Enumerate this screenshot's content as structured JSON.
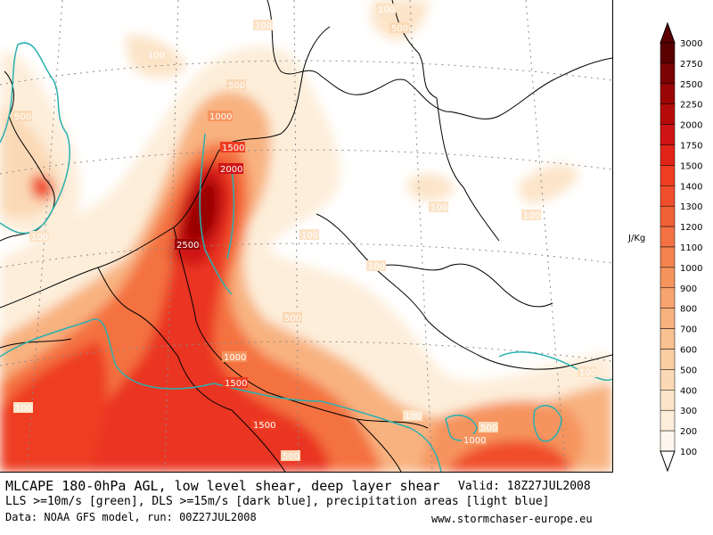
{
  "map": {
    "contour_labels": [
      "100",
      "500",
      "1000",
      "1500",
      "2000",
      "2500"
    ],
    "field": "MLCAPE",
    "colors": {
      "background": "#ffffff",
      "coast": "#000000",
      "lls_contour": "#2ab0b0",
      "grid": "#8a8a8a"
    }
  },
  "legend": {
    "unit": "J/Kg",
    "levels": [
      "3000",
      "2750",
      "2500",
      "2250",
      "2000",
      "1750",
      "1500",
      "1400",
      "1300",
      "1200",
      "1100",
      "1000",
      "900",
      "800",
      "700",
      "600",
      "500",
      "400",
      "300",
      "200",
      "100"
    ],
    "colors": [
      "#5a0000",
      "#7a0303",
      "#9a0606",
      "#b50b0b",
      "#cf1414",
      "#e22418",
      "#ee3d22",
      "#f04e2c",
      "#f26036",
      "#f47242",
      "#f5834f",
      "#f6945e",
      "#f7a46f",
      "#f8b280",
      "#f9c091",
      "#facda3",
      "#fbd9b6",
      "#fce4c8",
      "#fdeeda",
      "#fef6ec"
    ]
  },
  "footer": {
    "line1": "MLCAPE 180-0hPa AGL, low level shear, deep layer shear",
    "valid": "Valid: 18Z27JUL2008",
    "line2": "LLS >=10m/s [green], DLS >=15m/s [dark blue], precipitation areas [light blue]",
    "line3": "Data: NOAA GFS model, run: 00Z27JUL2008",
    "site": "www.stormchaser-europe.eu"
  }
}
